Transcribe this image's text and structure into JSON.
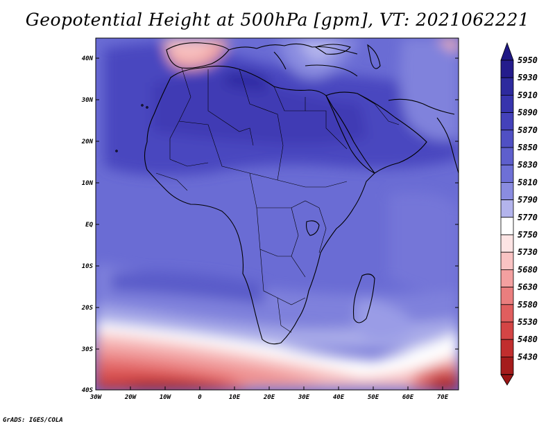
{
  "title": "Geopotential Height at 500hPa [gpm], VT: 2021062221",
  "credit": "GrADS: IGES/COLA",
  "map": {
    "field": "Geopotential Height at 500hPa",
    "units": "gpm",
    "valid_time": "2021062221",
    "lon_range": [
      -30,
      75
    ],
    "lat_range": [
      -40,
      45
    ],
    "lat_ticks": [
      "40N",
      "30N",
      "20N",
      "10N",
      "EQ",
      "10S",
      "20S",
      "30S",
      "40S"
    ],
    "lon_ticks": [
      "30W",
      "20W",
      "10W",
      "0",
      "10E",
      "20E",
      "30E",
      "40E",
      "50E",
      "60E",
      "70E"
    ]
  },
  "colorbar": {
    "levels": [
      {
        "label": "5950",
        "color": "#241c8c"
      },
      {
        "label": "5930",
        "color": "#2d2a9e"
      },
      {
        "label": "5910",
        "color": "#3734ad"
      },
      {
        "label": "5890",
        "color": "#4441ba"
      },
      {
        "label": "5870",
        "color": "#5050c4"
      },
      {
        "label": "5850",
        "color": "#5e5fcd"
      },
      {
        "label": "5830",
        "color": "#6e70d6"
      },
      {
        "label": "5810",
        "color": "#8a8ce0"
      },
      {
        "label": "5790",
        "color": "#b3b4ec"
      },
      {
        "label": "5770",
        "color": "#ffffff"
      },
      {
        "label": "5750",
        "color": "#fde4e4"
      },
      {
        "label": "5730",
        "color": "#f9c3c3"
      },
      {
        "label": "5680",
        "color": "#f3a0a0"
      },
      {
        "label": "5630",
        "color": "#ea7e7e"
      },
      {
        "label": "5580",
        "color": "#e05e5e"
      },
      {
        "label": "5530",
        "color": "#d44545"
      },
      {
        "label": "5480",
        "color": "#c12e2e"
      },
      {
        "label": "5430",
        "color": "#a51c1c"
      }
    ],
    "top_arrow_color": "#1f1885",
    "bottom_arrow_color": "#9a1414"
  }
}
